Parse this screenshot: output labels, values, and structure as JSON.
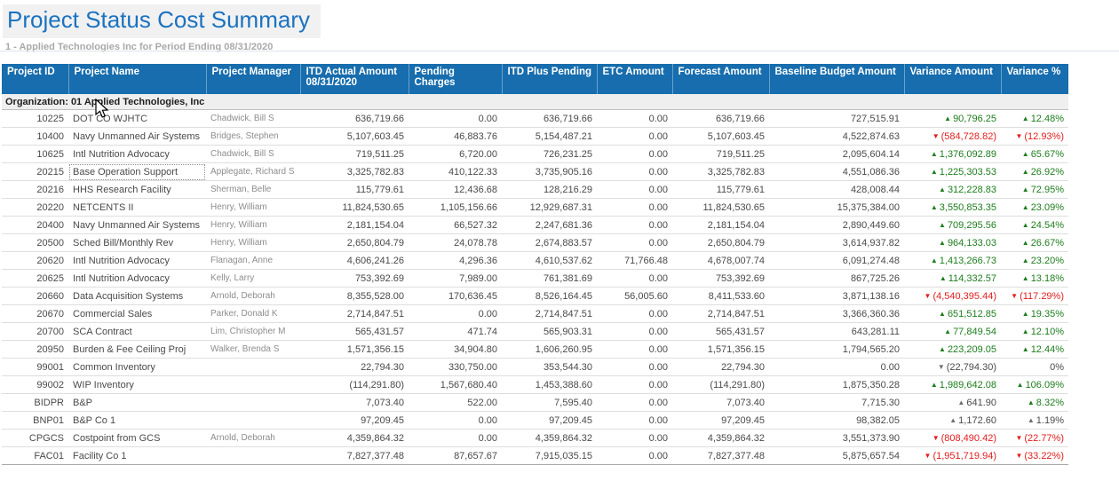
{
  "page": {
    "title": "Project Status Cost Summary",
    "subtitle": "1 - Applied Technologies Inc for Period Ending 08/31/2020"
  },
  "colors": {
    "title_text": "#1b72c0",
    "table_header_bg": "#176dad",
    "variance_positive": "#1d7d1d",
    "variance_negative": "#e11d1d",
    "variance_neutral_arrow": "#6e6e6e"
  },
  "table": {
    "group_label": "Organization: 01 Applied Technologies, Inc",
    "columns": [
      "Project ID",
      "Project Name",
      "Project Manager",
      "ITD Actual Amount 08/31/2020",
      "Pending Charges",
      "ITD Plus Pending",
      "ETC Amount",
      "Forecast Amount",
      "Baseline Budget Amount",
      "Variance Amount",
      "Variance %"
    ],
    "rows": [
      {
        "project_id": "10225",
        "project_name": "DOT CO WJHTC",
        "project_manager": "Chadwick, Bill S",
        "itd_actual_amount": "636,719.66",
        "pending_charges": "0.00",
        "itd_plus_pending": "636,719.66",
        "etc_amount": "0.00",
        "forecast_amount": "636,719.66",
        "baseline_budget_amount": "727,515.91",
        "variance_amount": {
          "arrow": "up",
          "tone": "good",
          "text": "90,796.25"
        },
        "variance_pct": {
          "arrow": "up",
          "tone": "good",
          "text": "12.48%"
        }
      },
      {
        "project_id": "10400",
        "project_name": "Navy Unmanned Air Systems",
        "project_manager": "Bridges, Stephen",
        "itd_actual_amount": "5,107,603.45",
        "pending_charges": "46,883.76",
        "itd_plus_pending": "5,154,487.21",
        "etc_amount": "0.00",
        "forecast_amount": "5,107,603.45",
        "baseline_budget_amount": "4,522,874.63",
        "variance_amount": {
          "arrow": "down",
          "tone": "bad",
          "text": "(584,728.82)"
        },
        "variance_pct": {
          "arrow": "down",
          "tone": "bad",
          "text": "(12.93%)"
        }
      },
      {
        "project_id": "10625",
        "project_name": "Intl Nutrition Advocacy",
        "project_manager": "Chadwick, Bill S",
        "itd_actual_amount": "719,511.25",
        "pending_charges": "6,720.00",
        "itd_plus_pending": "726,231.25",
        "etc_amount": "0.00",
        "forecast_amount": "719,511.25",
        "baseline_budget_amount": "2,095,604.14",
        "variance_amount": {
          "arrow": "up",
          "tone": "good",
          "text": "1,376,092.89"
        },
        "variance_pct": {
          "arrow": "up",
          "tone": "good",
          "text": "65.67%"
        }
      },
      {
        "project_id": "20215",
        "project_name": "Base Operation Support",
        "project_manager": "Applegate, Richard S",
        "itd_actual_amount": "3,325,782.83",
        "pending_charges": "410,122.33",
        "itd_plus_pending": "3,735,905.16",
        "etc_amount": "0.00",
        "forecast_amount": "3,325,782.83",
        "baseline_budget_amount": "4,551,086.36",
        "variance_amount": {
          "arrow": "up",
          "tone": "good",
          "text": "1,225,303.53"
        },
        "variance_pct": {
          "arrow": "up",
          "tone": "good",
          "text": "26.92%"
        }
      },
      {
        "project_id": "20216",
        "project_name": "HHS Research Facility",
        "project_manager": "Sherman, Belle",
        "itd_actual_amount": "115,779.61",
        "pending_charges": "12,436.68",
        "itd_plus_pending": "128,216.29",
        "etc_amount": "0.00",
        "forecast_amount": "115,779.61",
        "baseline_budget_amount": "428,008.44",
        "variance_amount": {
          "arrow": "up",
          "tone": "good",
          "text": "312,228.83"
        },
        "variance_pct": {
          "arrow": "up",
          "tone": "good",
          "text": "72.95%"
        }
      },
      {
        "project_id": "20220",
        "project_name": "NETCENTS II",
        "project_manager": "Henry, William",
        "itd_actual_amount": "11,824,530.65",
        "pending_charges": "1,105,156.66",
        "itd_plus_pending": "12,929,687.31",
        "etc_amount": "0.00",
        "forecast_amount": "11,824,530.65",
        "baseline_budget_amount": "15,375,384.00",
        "variance_amount": {
          "arrow": "up",
          "tone": "good",
          "text": "3,550,853.35"
        },
        "variance_pct": {
          "arrow": "up",
          "tone": "good",
          "text": "23.09%"
        }
      },
      {
        "project_id": "20400",
        "project_name": "Navy Unmanned Air Systems",
        "project_manager": "Henry, William",
        "itd_actual_amount": "2,181,154.04",
        "pending_charges": "66,527.32",
        "itd_plus_pending": "2,247,681.36",
        "etc_amount": "0.00",
        "forecast_amount": "2,181,154.04",
        "baseline_budget_amount": "2,890,449.60",
        "variance_amount": {
          "arrow": "up",
          "tone": "good",
          "text": "709,295.56"
        },
        "variance_pct": {
          "arrow": "up",
          "tone": "good",
          "text": "24.54%"
        }
      },
      {
        "project_id": "20500",
        "project_name": "Sched Bill/Monthly Rev",
        "project_manager": "Henry, William",
        "itd_actual_amount": "2,650,804.79",
        "pending_charges": "24,078.78",
        "itd_plus_pending": "2,674,883.57",
        "etc_amount": "0.00",
        "forecast_amount": "2,650,804.79",
        "baseline_budget_amount": "3,614,937.82",
        "variance_amount": {
          "arrow": "up",
          "tone": "good",
          "text": "964,133.03"
        },
        "variance_pct": {
          "arrow": "up",
          "tone": "good",
          "text": "26.67%"
        }
      },
      {
        "project_id": "20620",
        "project_name": "Intl Nutrition Advocacy",
        "project_manager": "Flanagan, Anne",
        "itd_actual_amount": "4,606,241.26",
        "pending_charges": "4,296.36",
        "itd_plus_pending": "4,610,537.62",
        "etc_amount": "71,766.48",
        "forecast_amount": "4,678,007.74",
        "baseline_budget_amount": "6,091,274.48",
        "variance_amount": {
          "arrow": "up",
          "tone": "good",
          "text": "1,413,266.73"
        },
        "variance_pct": {
          "arrow": "up",
          "tone": "good",
          "text": "23.20%"
        }
      },
      {
        "project_id": "20625",
        "project_name": "Intl Nutrition Advocacy",
        "project_manager": "Kelly, Larry",
        "itd_actual_amount": "753,392.69",
        "pending_charges": "7,989.00",
        "itd_plus_pending": "761,381.69",
        "etc_amount": "0.00",
        "forecast_amount": "753,392.69",
        "baseline_budget_amount": "867,725.26",
        "variance_amount": {
          "arrow": "up",
          "tone": "good",
          "text": "114,332.57"
        },
        "variance_pct": {
          "arrow": "up",
          "tone": "good",
          "text": "13.18%"
        }
      },
      {
        "project_id": "20660",
        "project_name": "Data Acquisition Systems",
        "project_manager": "Arnold, Deborah",
        "itd_actual_amount": "8,355,528.00",
        "pending_charges": "170,636.45",
        "itd_plus_pending": "8,526,164.45",
        "etc_amount": "56,005.60",
        "forecast_amount": "8,411,533.60",
        "baseline_budget_amount": "3,871,138.16",
        "variance_amount": {
          "arrow": "down",
          "tone": "bad",
          "text": "(4,540,395.44)"
        },
        "variance_pct": {
          "arrow": "down",
          "tone": "bad",
          "text": "(117.29%)"
        }
      },
      {
        "project_id": "20670",
        "project_name": "Commercial Sales",
        "project_manager": "Parker, Donald K",
        "itd_actual_amount": "2,714,847.51",
        "pending_charges": "0.00",
        "itd_plus_pending": "2,714,847.51",
        "etc_amount": "0.00",
        "forecast_amount": "2,714,847.51",
        "baseline_budget_amount": "3,366,360.36",
        "variance_amount": {
          "arrow": "up",
          "tone": "good",
          "text": "651,512.85"
        },
        "variance_pct": {
          "arrow": "up",
          "tone": "good",
          "text": "19.35%"
        }
      },
      {
        "project_id": "20700",
        "project_name": "SCA Contract",
        "project_manager": "Lim, Christopher M",
        "itd_actual_amount": "565,431.57",
        "pending_charges": "471.74",
        "itd_plus_pending": "565,903.31",
        "etc_amount": "0.00",
        "forecast_amount": "565,431.57",
        "baseline_budget_amount": "643,281.11",
        "variance_amount": {
          "arrow": "up",
          "tone": "good",
          "text": "77,849.54"
        },
        "variance_pct": {
          "arrow": "up",
          "tone": "good",
          "text": "12.10%"
        }
      },
      {
        "project_id": "20950",
        "project_name": "Burden & Fee Ceiling Proj",
        "project_manager": "Walker, Brenda S",
        "itd_actual_amount": "1,571,356.15",
        "pending_charges": "34,904.80",
        "itd_plus_pending": "1,606,260.95",
        "etc_amount": "0.00",
        "forecast_amount": "1,571,356.15",
        "baseline_budget_amount": "1,794,565.20",
        "variance_amount": {
          "arrow": "up",
          "tone": "good",
          "text": "223,209.05"
        },
        "variance_pct": {
          "arrow": "up",
          "tone": "good",
          "text": "12.44%"
        }
      },
      {
        "project_id": "99001",
        "project_name": "Common Inventory",
        "project_manager": "",
        "itd_actual_amount": "22,794.30",
        "pending_charges": "330,750.00",
        "itd_plus_pending": "353,544.30",
        "etc_amount": "0.00",
        "forecast_amount": "22,794.30",
        "baseline_budget_amount": "0.00",
        "variance_amount": {
          "arrow": "down",
          "tone": "neutral",
          "text": "(22,794.30)"
        },
        "variance_pct": {
          "arrow": null,
          "tone": "plain",
          "text": "0%"
        }
      },
      {
        "project_id": "99002",
        "project_name": "WIP Inventory",
        "project_manager": "",
        "itd_actual_amount": "(114,291.80)",
        "pending_charges": "1,567,680.40",
        "itd_plus_pending": "1,453,388.60",
        "etc_amount": "0.00",
        "forecast_amount": "(114,291.80)",
        "baseline_budget_amount": "1,875,350.28",
        "variance_amount": {
          "arrow": "up",
          "tone": "good",
          "text": "1,989,642.08"
        },
        "variance_pct": {
          "arrow": "up",
          "tone": "good",
          "text": "106.09%"
        }
      },
      {
        "project_id": "BIDPR",
        "project_name": "B&P",
        "project_manager": "",
        "itd_actual_amount": "7,073.40",
        "pending_charges": "522.00",
        "itd_plus_pending": "7,595.40",
        "etc_amount": "0.00",
        "forecast_amount": "7,073.40",
        "baseline_budget_amount": "7,715.30",
        "variance_amount": {
          "arrow": "up",
          "tone": "neutral",
          "text": "641.90"
        },
        "variance_pct": {
          "arrow": "up",
          "tone": "good",
          "text": "8.32%"
        }
      },
      {
        "project_id": "BNP01",
        "project_name": "B&P Co 1",
        "project_manager": "",
        "itd_actual_amount": "97,209.45",
        "pending_charges": "0.00",
        "itd_plus_pending": "97,209.45",
        "etc_amount": "0.00",
        "forecast_amount": "97,209.45",
        "baseline_budget_amount": "98,382.05",
        "variance_amount": {
          "arrow": "up",
          "tone": "neutral",
          "text": "1,172.60"
        },
        "variance_pct": {
          "arrow": "up",
          "tone": "neutral",
          "text": "1.19%"
        }
      },
      {
        "project_id": "CPGCS",
        "project_name": "Costpoint from GCS",
        "project_manager": "Arnold, Deborah",
        "itd_actual_amount": "4,359,864.32",
        "pending_charges": "0.00",
        "itd_plus_pending": "4,359,864.32",
        "etc_amount": "0.00",
        "forecast_amount": "4,359,864.32",
        "baseline_budget_amount": "3,551,373.90",
        "variance_amount": {
          "arrow": "down",
          "tone": "bad",
          "text": "(808,490.42)"
        },
        "variance_pct": {
          "arrow": "down",
          "tone": "bad",
          "text": "(22.77%)"
        }
      },
      {
        "project_id": "FAC01",
        "project_name": "Facility Co 1",
        "project_manager": "",
        "itd_actual_amount": "7,827,377.48",
        "pending_charges": "87,657.67",
        "itd_plus_pending": "7,915,035.15",
        "etc_amount": "0.00",
        "forecast_amount": "7,827,377.48",
        "baseline_budget_amount": "5,875,657.54",
        "variance_amount": {
          "arrow": "down",
          "tone": "bad",
          "text": "(1,951,719.94)"
        },
        "variance_pct": {
          "arrow": "down",
          "tone": "bad",
          "text": "(33.22%)"
        }
      }
    ]
  },
  "ui_state": {
    "focused_cell": {
      "project_id": "20215",
      "column": "project_name"
    }
  }
}
